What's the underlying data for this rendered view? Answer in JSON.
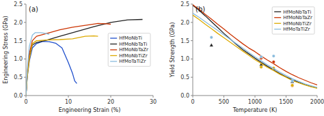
{
  "chart_data": [
    {
      "type": "line",
      "title": "(a)",
      "x_label": "Engineering Strain (%)",
      "y_label": "Engineering Stress (GPa)",
      "xlim": [
        0,
        30
      ],
      "ylim": [
        0,
        2.5
      ],
      "xticks": [
        0,
        10,
        20,
        30
      ],
      "yticks": [
        {
          "value": 0,
          "label": "0.0"
        },
        0.5,
        {
          "value": 1.0,
          "label": "1.0"
        },
        1.5,
        {
          "value": 2.0,
          "label": "2.0"
        },
        2.5
      ],
      "legend": "right",
      "series": [
        {
          "name": "HfMoNbTi",
          "color": "#1f4fcc",
          "x": [
            0,
            0.3,
            0.8,
            1.5,
            2.5,
            4.0,
            5.5,
            7.0,
            8.5,
            10.0,
            11.0,
            11.5,
            12.0
          ],
          "values": [
            0,
            0.5,
            0.95,
            1.3,
            1.42,
            1.48,
            1.47,
            1.43,
            1.3,
            0.9,
            0.6,
            0.4,
            0.33
          ]
        },
        {
          "name": "HfMoNbTaTi",
          "color": "#222222",
          "x": [
            0,
            0.3,
            0.8,
            1.5,
            2.5,
            5.0,
            8.0,
            12.0,
            16.0,
            20.0,
            24.0,
            27.5
          ],
          "values": [
            0,
            0.55,
            1.1,
            1.38,
            1.45,
            1.52,
            1.62,
            1.75,
            1.88,
            2.0,
            2.07,
            2.08
          ]
        },
        {
          "name": "HfMoNbTaZr",
          "color": "#cc3300",
          "x": [
            0,
            0.3,
            0.8,
            1.5,
            2.5,
            5.0,
            8.0,
            11.0,
            14.0,
            17.0,
            19.0,
            20.0
          ],
          "values": [
            0,
            0.6,
            1.15,
            1.5,
            1.62,
            1.7,
            1.8,
            1.87,
            1.92,
            1.97,
            1.96,
            1.95
          ]
        },
        {
          "name": "HfMoNbTiZr",
          "color": "#ddaa00",
          "x": [
            0,
            0.3,
            0.8,
            1.5,
            2.5,
            5.0,
            8.0,
            11.0,
            14.0,
            16.0,
            17.0
          ],
          "values": [
            0,
            0.5,
            1.0,
            1.42,
            1.5,
            1.52,
            1.53,
            1.55,
            1.62,
            1.63,
            1.62
          ]
        },
        {
          "name": "HfMoTaTiZr",
          "color": "#88bbdd",
          "x": [
            0,
            0.3,
            0.8,
            1.5,
            2.2,
            3.5,
            4.5,
            5.5
          ],
          "values": [
            0,
            0.7,
            1.35,
            1.65,
            1.72,
            1.72,
            1.7,
            1.67
          ]
        }
      ]
    },
    {
      "type": "line",
      "title": "(b)",
      "x_label": "Temperature (K)",
      "y_label": "Yield Strength (GPa)",
      "xlim": [
        0,
        2000
      ],
      "ylim": [
        0,
        2.5
      ],
      "xticks": [
        0,
        500,
        1000,
        1500,
        2000
      ],
      "yticks": [
        {
          "value": 0,
          "label": "0.0"
        },
        0.5,
        {
          "value": 1.0,
          "label": "1.0"
        },
        1.5,
        {
          "value": 2.0,
          "label": "2.0"
        },
        2.5
      ],
      "legend": "upper-right",
      "series": [
        {
          "name": "HfMoNbTaTi",
          "color": "#222222",
          "x": [
            0,
            100,
            200,
            300,
            400,
            500,
            600,
            700,
            800,
            900,
            1000,
            1100,
            1200,
            1300,
            1400,
            1500,
            1600,
            1700,
            1800,
            1900,
            2000
          ],
          "values": [
            2.47,
            2.33,
            2.18,
            2.02,
            1.86,
            1.7,
            1.55,
            1.4,
            1.26,
            1.14,
            1.02,
            0.91,
            0.8,
            0.7,
            0.6,
            0.51,
            0.43,
            0.36,
            0.3,
            0.25,
            0.21
          ]
        },
        {
          "type": "scatter",
          "color": "#222222",
          "marker": "triangle",
          "x": [
            300,
            1100,
            1300,
            1600
          ],
          "values": [
            1.38,
            0.85,
            0.73,
            0.38
          ]
        },
        {
          "name": "HfMoNbTaZr",
          "color": "#cc3300",
          "x": [
            0,
            100,
            200,
            300,
            400,
            500,
            600,
            700,
            800,
            900,
            1000,
            1100,
            1200,
            1300,
            1400,
            1500,
            1600,
            1700,
            1800,
            1900,
            2000
          ],
          "values": [
            2.48,
            2.36,
            2.22,
            2.09,
            1.95,
            1.82,
            1.68,
            1.55,
            1.42,
            1.3,
            1.2,
            1.08,
            0.97,
            0.87,
            0.76,
            0.66,
            0.57,
            0.49,
            0.42,
            0.35,
            0.29
          ]
        },
        {
          "type": "scatter",
          "color": "#cc3300",
          "marker": "circle",
          "x": [
            1100,
            1300,
            1600
          ],
          "values": [
            1.02,
            0.92,
            0.27
          ]
        },
        {
          "name": "HfMoNbTiZr",
          "color": "#ddaa00",
          "x": [
            0,
            100,
            200,
            300,
            400,
            500,
            600,
            700,
            800,
            900,
            1000,
            1100,
            1200,
            1300,
            1400,
            1500,
            1600,
            1700,
            1800,
            1900,
            2000
          ],
          "values": [
            2.2,
            2.08,
            1.95,
            1.83,
            1.7,
            1.58,
            1.46,
            1.34,
            1.22,
            1.1,
            0.98,
            0.88,
            0.77,
            0.68,
            0.58,
            0.5,
            0.41,
            0.35,
            0.29,
            0.24,
            0.2
          ]
        },
        {
          "type": "scatter",
          "color": "#ddaa00",
          "marker": "circle",
          "x": [
            1100,
            1300,
            1600
          ],
          "values": [
            0.78,
            0.75,
            0.28
          ]
        },
        {
          "name": "HfMoTaTiZr",
          "color": "#88bbdd",
          "x": [
            0,
            100,
            200,
            300,
            400,
            500,
            600,
            700,
            800,
            900,
            1000,
            1100,
            1200,
            1300,
            1400,
            1500,
            1600,
            1700,
            1800,
            1900,
            2000
          ],
          "values": [
            2.25,
            2.14,
            2.02,
            1.9,
            1.78,
            1.66,
            1.54,
            1.42,
            1.3,
            1.18,
            1.06,
            0.95,
            0.84,
            0.74,
            0.64,
            0.55,
            0.46,
            0.39,
            0.32,
            0.27,
            0.22
          ]
        },
        {
          "type": "scatter",
          "color": "#88bbdd",
          "marker": "circle",
          "x": [
            300,
            1100,
            1300,
            1600
          ],
          "values": [
            1.59,
            1.06,
            1.08,
            0.4
          ]
        }
      ]
    }
  ]
}
